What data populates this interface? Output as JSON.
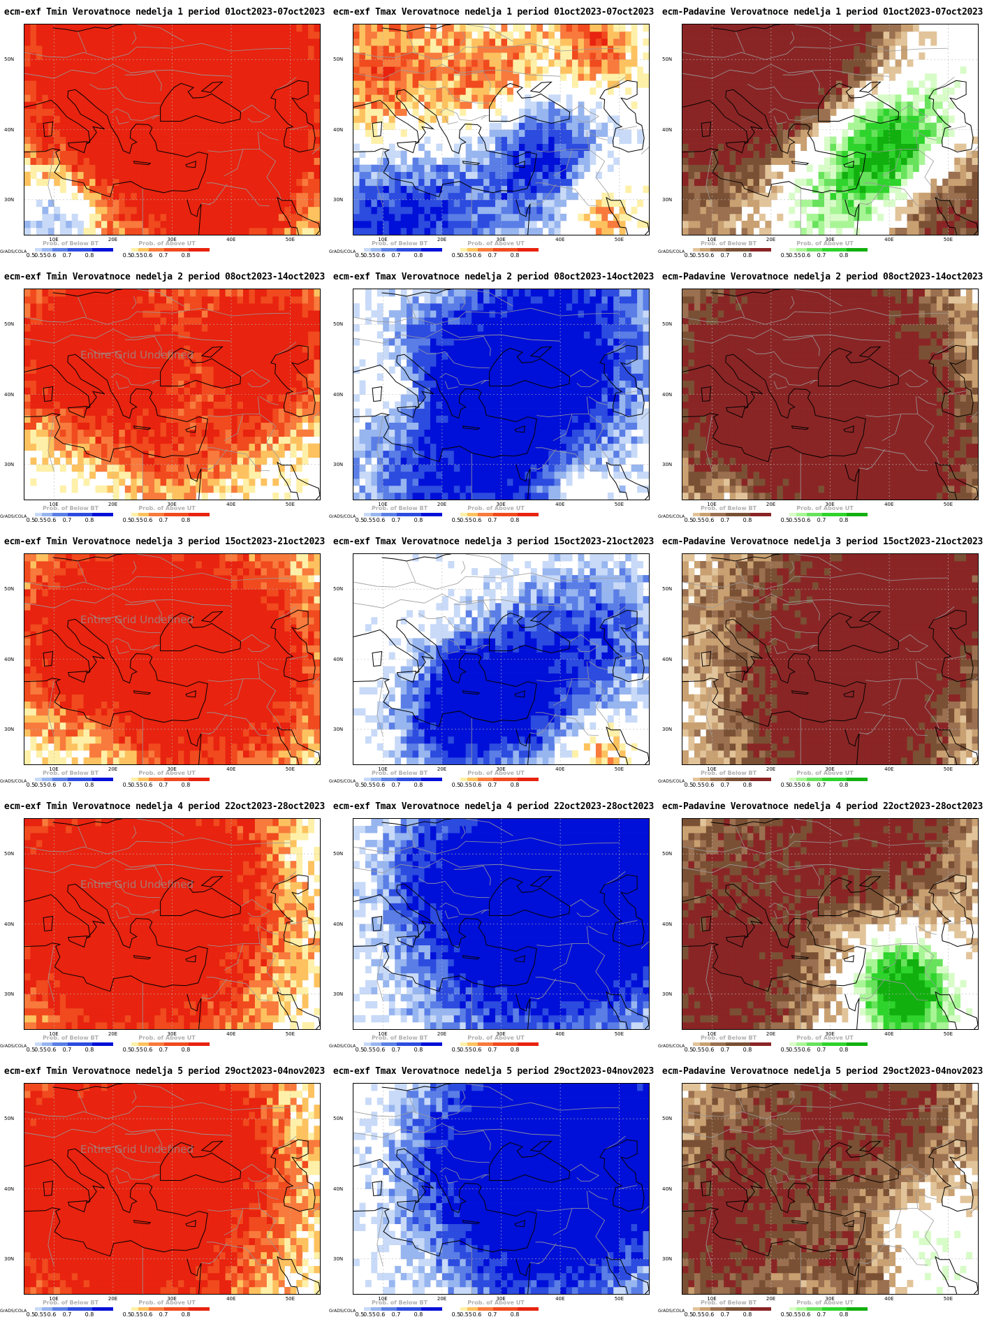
{
  "grads_label": "GrADS/COLA",
  "lat_labels": [
    "50N",
    "40N",
    "30N"
  ],
  "lon_labels": [
    "10E",
    "20E",
    "30E",
    "40E",
    "50E"
  ],
  "legend_titles": {
    "below": "Prob. of Below BT",
    "above": "Prob. of Above UT"
  },
  "legend_ticks": [
    "0.5",
    "0.55",
    "0.6",
    "0.7",
    "0.8"
  ],
  "watermark": "Entire Grid Undefined",
  "colors": {
    "warm": [
      "#fef0a8",
      "#fdc25f",
      "#f87a3c",
      "#f04a1e",
      "#e8230f"
    ],
    "cold": [
      "#c8daf8",
      "#97b5ef",
      "#5a7ee6",
      "#2c4bdf",
      "#0010d8"
    ],
    "dry": [
      "#e2c49a",
      "#c9a071",
      "#9a7050",
      "#7a5034",
      "#8a2525"
    ],
    "wet": [
      "#d8fcc8",
      "#a8f596",
      "#68e25c",
      "#2ed42c",
      "#12b00f"
    ],
    "land_line": "#000000",
    "border_line": "#9a9a9a",
    "grid_line": "#b8b8b8"
  },
  "panels": [
    {
      "title": "ecm-exf Tmin Verovatnoce nedelja 1 period 01oct2023-07oct2023",
      "field": "tmin",
      "week": 1,
      "legend": [
        "cold",
        "warm"
      ],
      "watermark": false
    },
    {
      "title": "ecm-exf Tmax Verovatnoce nedelja 1 period 01oct2023-07oct2023",
      "field": "tmax",
      "week": 1,
      "legend": [
        "cold",
        "warm"
      ],
      "watermark": false
    },
    {
      "title": "ecm-Padavine Verovatnoce nedelja 1 period 01oct2023-07oct2023",
      "field": "prec",
      "week": 1,
      "legend": [
        "dry",
        "wet"
      ],
      "watermark": false
    },
    {
      "title": "ecm-exf Tmin Verovatnoce nedelja 2 period 08oct2023-14oct2023",
      "field": "tmin",
      "week": 2,
      "legend": [
        "cold",
        "warm"
      ],
      "watermark": true
    },
    {
      "title": "ecm-exf Tmax Verovatnoce nedelja 2 period 08oct2023-14oct2023",
      "field": "tmax",
      "week": 2,
      "legend": [
        "cold",
        "warm"
      ],
      "watermark": false
    },
    {
      "title": "ecm-Padavine Verovatnoce nedelja 2 period 08oct2023-14oct2023",
      "field": "prec",
      "week": 2,
      "legend": [
        "dry",
        "wet"
      ],
      "watermark": false
    },
    {
      "title": "ecm-exf Tmin Verovatnoce nedelja 3 period 15oct2023-21oct2023",
      "field": "tmin",
      "week": 3,
      "legend": [
        "cold",
        "warm"
      ],
      "watermark": true
    },
    {
      "title": "ecm-exf Tmax Verovatnoce nedelja 3 period 15oct2023-21oct2023",
      "field": "tmax",
      "week": 3,
      "legend": [
        "cold",
        "warm"
      ],
      "watermark": false
    },
    {
      "title": "ecm-Padavine Verovatnoce nedelja 3 period 15oct2023-21oct2023",
      "field": "prec",
      "week": 3,
      "legend": [
        "dry",
        "wet"
      ],
      "watermark": false
    },
    {
      "title": "ecm-exf Tmin Verovatnoce nedelja 4 period 22oct2023-28oct2023",
      "field": "tmin",
      "week": 4,
      "legend": [
        "cold",
        "warm"
      ],
      "watermark": true
    },
    {
      "title": "ecm-exf Tmax Verovatnoce nedelja 4 period 22oct2023-28oct2023",
      "field": "tmax",
      "week": 4,
      "legend": [
        "cold",
        "warm"
      ],
      "watermark": false
    },
    {
      "title": "ecm-Padavine Verovatnoce nedelja 4 period 22oct2023-28oct2023",
      "field": "prec",
      "week": 4,
      "legend": [
        "dry",
        "wet"
      ],
      "watermark": false
    },
    {
      "title": "ecm-exf Tmin Verovatnoce nedelja 5 period 29oct2023-04nov2023",
      "field": "tmin",
      "week": 5,
      "legend": [
        "cold",
        "warm"
      ],
      "watermark": true
    },
    {
      "title": "ecm-exf Tmax Verovatnoce nedelja 5 period 29oct2023-04nov2023",
      "field": "tmax",
      "week": 5,
      "legend": [
        "cold",
        "warm"
      ],
      "watermark": false
    },
    {
      "title": "ecm-Padavine Verovatnoce nedelja 5 period 29oct2023-04nov2023",
      "field": "prec",
      "week": 5,
      "legend": [
        "dry",
        "wet"
      ],
      "watermark": false
    }
  ]
}
